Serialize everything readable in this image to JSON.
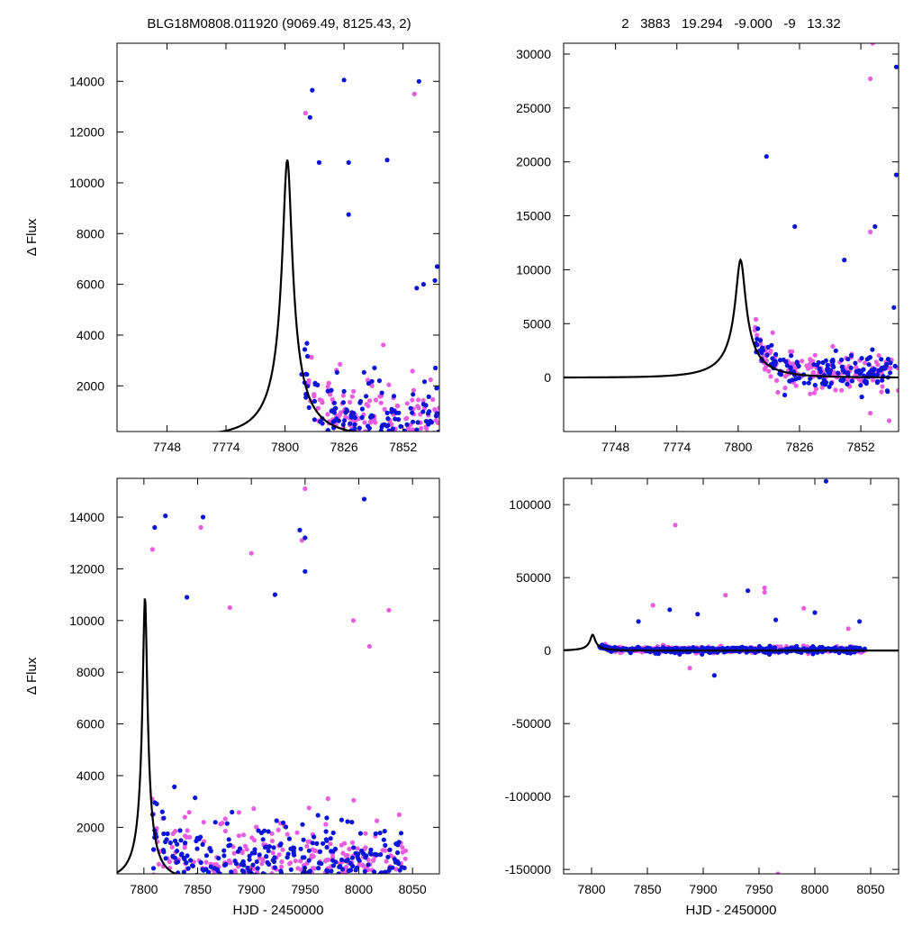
{
  "header": {
    "left_title": "BLG18M0808.011920 (9069.49, 8125.43,    2)",
    "right_title": "2   3883   19.294   -9.000   -9   13.32"
  },
  "colors": {
    "series_a": "#e85ce0",
    "series_b": "#0a14d8",
    "model": "#000000"
  },
  "model": {
    "t0": 7801,
    "tE": 21,
    "u0": 0.0995,
    "baseline": 0
  },
  "chart_data": [
    {
      "id": "top-left",
      "type": "scatter",
      "xlim": [
        7726,
        7868
      ],
      "ylim": [
        200,
        15500
      ],
      "xticks": [
        7748,
        7774,
        7800,
        7826,
        7852
      ],
      "yticks": [
        2000,
        4000,
        6000,
        8000,
        10000,
        12000,
        14000
      ],
      "ylabel": "Δ Flux",
      "xlabel": "",
      "range": [
        7807,
        7868
      ],
      "seed": 11,
      "n_a": 160,
      "n_b": 150,
      "noise": 1400,
      "extra_points": [
        {
          "x": 7809,
          "y": 12750,
          "s": "a"
        },
        {
          "x": 7811,
          "y": 12580,
          "s": "b"
        },
        {
          "x": 7812,
          "y": 13650,
          "s": "b"
        },
        {
          "x": 7815,
          "y": 10800,
          "s": "b"
        },
        {
          "x": 7826,
          "y": 14050,
          "s": "b"
        },
        {
          "x": 7828,
          "y": 10800,
          "s": "b"
        },
        {
          "x": 7828,
          "y": 8750,
          "s": "b"
        },
        {
          "x": 7845,
          "y": 10900,
          "s": "b"
        },
        {
          "x": 7857,
          "y": 13500,
          "s": "a"
        },
        {
          "x": 7859,
          "y": 14000,
          "s": "b"
        },
        {
          "x": 7858,
          "y": 5850,
          "s": "b"
        },
        {
          "x": 7861,
          "y": 6000,
          "s": "b"
        },
        {
          "x": 7867,
          "y": 6700,
          "s": "b"
        },
        {
          "x": 7866,
          "y": 6150,
          "s": "b"
        }
      ]
    },
    {
      "id": "top-right",
      "type": "scatter",
      "xlim": [
        7726,
        7868
      ],
      "ylim": [
        -5000,
        31000
      ],
      "xticks": [
        7748,
        7774,
        7800,
        7826,
        7852
      ],
      "yticks": [
        0,
        5000,
        10000,
        15000,
        20000,
        25000,
        30000
      ],
      "ylabel": "",
      "xlabel": "",
      "range": [
        7807,
        7868
      ],
      "seed": 23,
      "n_a": 160,
      "n_b": 150,
      "noise": 1400,
      "extra_points": [
        {
          "x": 7812,
          "y": 20500,
          "s": "b"
        },
        {
          "x": 7824,
          "y": 14000,
          "s": "b"
        },
        {
          "x": 7857,
          "y": 31000,
          "s": "a"
        },
        {
          "x": 7856,
          "y": 27700,
          "s": "a"
        },
        {
          "x": 7856,
          "y": 13500,
          "s": "a"
        },
        {
          "x": 7858,
          "y": 14000,
          "s": "b"
        },
        {
          "x": 7867,
          "y": 28800,
          "s": "b"
        },
        {
          "x": 7867,
          "y": 18800,
          "s": "b"
        },
        {
          "x": 7866,
          "y": 6500,
          "s": "b"
        },
        {
          "x": 7856,
          "y": -3300,
          "s": "a"
        },
        {
          "x": 7864,
          "y": -4000,
          "s": "a"
        },
        {
          "x": 7845,
          "y": 10900,
          "s": "b"
        }
      ]
    },
    {
      "id": "bottom-left",
      "type": "scatter",
      "xlim": [
        7775,
        8075
      ],
      "ylim": [
        200,
        15500
      ],
      "xticks": [
        7800,
        7850,
        7900,
        7950,
        8000,
        8050
      ],
      "yticks": [
        2000,
        4000,
        6000,
        8000,
        10000,
        12000,
        14000
      ],
      "ylabel": "Δ Flux",
      "xlabel": "HJD - 2450000",
      "range": [
        7807,
        8045
      ],
      "seed": 37,
      "n_a": 300,
      "n_b": 360,
      "noise": 1500,
      "extra_points": [
        {
          "x": 7808,
          "y": 12750,
          "s": "a"
        },
        {
          "x": 7810,
          "y": 13600,
          "s": "b"
        },
        {
          "x": 7820,
          "y": 14050,
          "s": "b"
        },
        {
          "x": 7853,
          "y": 13600,
          "s": "a"
        },
        {
          "x": 7855,
          "y": 14000,
          "s": "b"
        },
        {
          "x": 7900,
          "y": 12600,
          "s": "a"
        },
        {
          "x": 7922,
          "y": 11000,
          "s": "b"
        },
        {
          "x": 7945,
          "y": 13500,
          "s": "b"
        },
        {
          "x": 7947,
          "y": 13100,
          "s": "a"
        },
        {
          "x": 7950,
          "y": 15100,
          "s": "a"
        },
        {
          "x": 7950,
          "y": 11900,
          "s": "b"
        },
        {
          "x": 7950,
          "y": 13200,
          "s": "b"
        },
        {
          "x": 8005,
          "y": 14700,
          "s": "b"
        },
        {
          "x": 8028,
          "y": 10400,
          "s": "a"
        },
        {
          "x": 7995,
          "y": 10000,
          "s": "a"
        },
        {
          "x": 8010,
          "y": 9000,
          "s": "a"
        },
        {
          "x": 7840,
          "y": 10900,
          "s": "b"
        },
        {
          "x": 7880,
          "y": 10500,
          "s": "a"
        }
      ]
    },
    {
      "id": "bottom-right",
      "type": "scatter",
      "xlim": [
        7775,
        8075
      ],
      "ylim": [
        -153000,
        118000
      ],
      "xticks": [
        7800,
        7850,
        7900,
        7950,
        8000,
        8050
      ],
      "yticks": [
        -150000,
        -100000,
        -50000,
        0,
        50000,
        100000
      ],
      "ylabel": "",
      "xlabel": "HJD - 2450000",
      "range": [
        7807,
        8045
      ],
      "seed": 53,
      "n_a": 330,
      "n_b": 420,
      "noise": 1700,
      "extra_points": [
        {
          "x": 7875,
          "y": 86000,
          "s": "a"
        },
        {
          "x": 8010,
          "y": 116000,
          "s": "b"
        },
        {
          "x": 7967,
          "y": -153000,
          "s": "a"
        },
        {
          "x": 7955,
          "y": 43000,
          "s": "a"
        },
        {
          "x": 7955,
          "y": 40000,
          "s": "a"
        },
        {
          "x": 7940,
          "y": 41000,
          "s": "b"
        },
        {
          "x": 7855,
          "y": 31000,
          "s": "a"
        },
        {
          "x": 7920,
          "y": 38000,
          "s": "a"
        },
        {
          "x": 7895,
          "y": 25000,
          "s": "b"
        },
        {
          "x": 8000,
          "y": 26000,
          "s": "b"
        },
        {
          "x": 7990,
          "y": 29000,
          "s": "a"
        },
        {
          "x": 7910,
          "y": -17000,
          "s": "b"
        },
        {
          "x": 7870,
          "y": 28000,
          "s": "b"
        },
        {
          "x": 8040,
          "y": 20000,
          "s": "b"
        },
        {
          "x": 7842,
          "y": 20000,
          "s": "b"
        },
        {
          "x": 7888,
          "y": -12000,
          "s": "a"
        },
        {
          "x": 7965,
          "y": 21000,
          "s": "b"
        },
        {
          "x": 8030,
          "y": 15000,
          "s": "a"
        }
      ]
    }
  ]
}
